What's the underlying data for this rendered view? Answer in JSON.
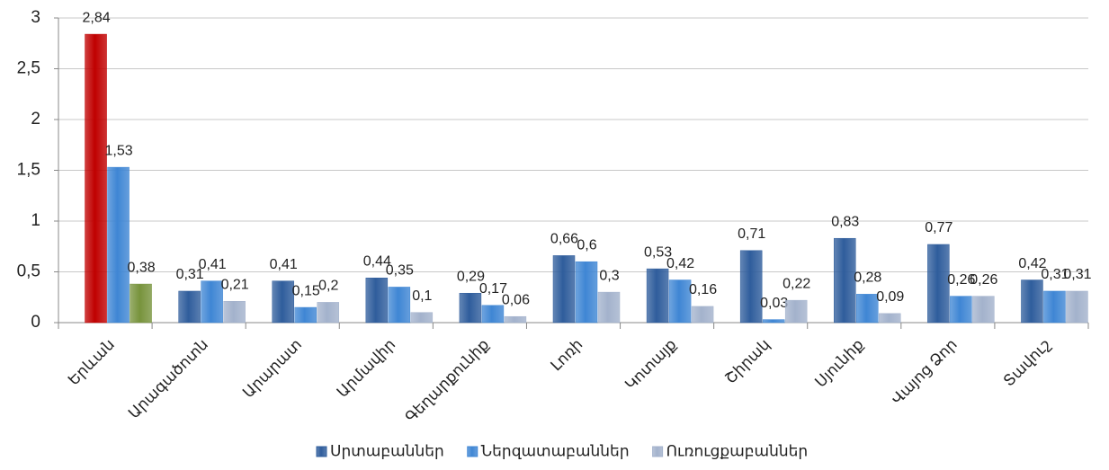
{
  "chart_data": {
    "type": "bar",
    "categories": [
      "Երևան",
      "Արագածոտն",
      "Արարատ",
      "Արմավիր",
      "Գեղարքունիք",
      "Լոռի",
      "Կոտայք",
      "Շիրակ",
      "Սյունիք",
      "Վայոց Ձոր",
      "Տավուշ"
    ],
    "series": [
      {
        "name": "Սրտաբաններ",
        "color": "#2f5d9c",
        "colors": [
          "#c00000",
          "#2f5d9c",
          "#2f5d9c",
          "#2f5d9c",
          "#2f5d9c",
          "#2f5d9c",
          "#2f5d9c",
          "#2f5d9c",
          "#2f5d9c",
          "#2f5d9c",
          "#2f5d9c"
        ],
        "values": [
          2.84,
          0.31,
          0.41,
          0.44,
          0.29,
          0.66,
          0.53,
          0.71,
          0.83,
          0.77,
          0.42
        ],
        "value_labels": [
          "2,84",
          "0,31",
          "0,41",
          "0,44",
          "0,29",
          "0,66",
          "0,53",
          "0,71",
          "0,83",
          "0,77",
          "0,42"
        ]
      },
      {
        "name": "Ներզատաբաններ",
        "color": "#3f86d4",
        "colors": [
          "#3f86d4",
          "#3f86d4",
          "#3f86d4",
          "#3f86d4",
          "#3f86d4",
          "#3f86d4",
          "#3f86d4",
          "#3f86d4",
          "#3f86d4",
          "#3f86d4",
          "#3f86d4"
        ],
        "values": [
          1.53,
          0.41,
          0.15,
          0.35,
          0.17,
          0.6,
          0.42,
          0.03,
          0.28,
          0.26,
          0.31
        ],
        "value_labels": [
          "1,53",
          "0,41",
          "0,15",
          "0,35",
          "0,17",
          "0,6",
          "0,42",
          "0,03",
          "0,28",
          "0,26",
          "0,31"
        ]
      },
      {
        "name": "Ուռուցքաբաններ",
        "color": "#a3b2cc",
        "colors": [
          "#77933c",
          "#a3b2cc",
          "#a3b2cc",
          "#a3b2cc",
          "#a3b2cc",
          "#a3b2cc",
          "#a3b2cc",
          "#a3b2cc",
          "#a3b2cc",
          "#a3b2cc",
          "#a3b2cc"
        ],
        "values": [
          0.38,
          0.21,
          0.2,
          0.1,
          0.06,
          0.3,
          0.16,
          0.22,
          0.09,
          0.26,
          0.31
        ],
        "value_labels": [
          "0,38",
          "0,21",
          "0,2",
          "0,1",
          "0,06",
          "0,3",
          "0,16",
          "0,22",
          "0,09",
          "0,26",
          "0,31"
        ]
      }
    ],
    "ylim": [
      0,
      3
    ],
    "yticks": [
      0,
      {
        "value": 0.5,
        "label": "0,5"
      },
      1,
      {
        "value": 1.5,
        "label": "1,5"
      },
      2,
      {
        "value": 2.5,
        "label": "2,5"
      },
      3
    ],
    "grid": true,
    "legend": "bottom"
  }
}
